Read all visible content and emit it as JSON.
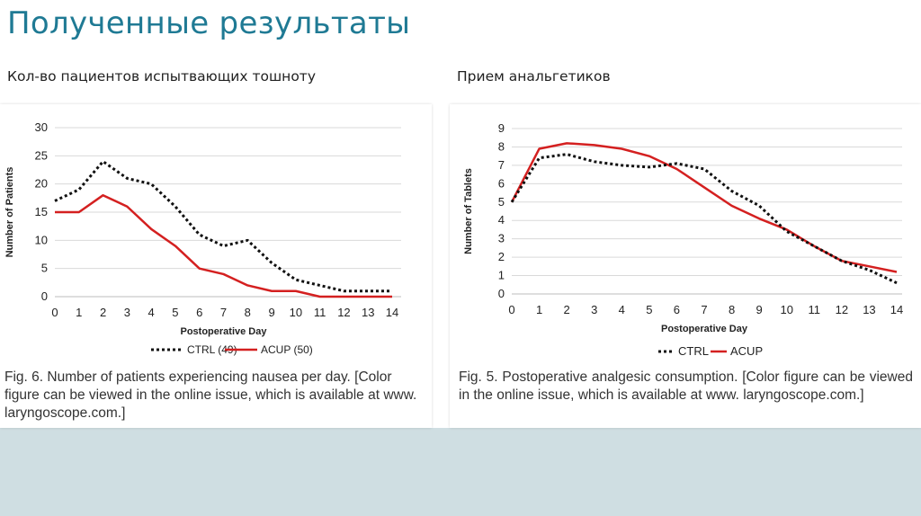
{
  "slide": {
    "title": "Полученные результаты",
    "left_subtitle": "Кол-во пациентов испытвающих тошноту",
    "right_subtitle": "Прием анальгетиков"
  },
  "colors": {
    "title": "#1f7a94",
    "ctrl": "#111111",
    "acup": "#d42020",
    "band": "#cfdee2"
  },
  "chart_data": [
    {
      "type": "line",
      "title": "",
      "xlabel": "Postoperative Day",
      "ylabel": "Number of Patients",
      "x": [
        0,
        1,
        2,
        3,
        4,
        5,
        6,
        7,
        8,
        9,
        10,
        11,
        12,
        13,
        14
      ],
      "ylim": [
        0,
        30
      ],
      "yticks": [
        0,
        5,
        10,
        15,
        20,
        25,
        30
      ],
      "grid": true,
      "legend_position": "bottom",
      "series": [
        {
          "name": "CTRL (49)",
          "style": "dotted",
          "values": [
            17,
            19,
            24,
            21,
            20,
            16,
            11,
            9,
            10,
            6,
            3,
            2,
            1,
            1,
            1
          ]
        },
        {
          "name": "ACUP (50)",
          "style": "solid",
          "values": [
            15,
            15,
            18,
            16,
            12,
            9,
            5,
            4,
            2,
            1,
            1,
            0,
            0,
            0,
            0
          ]
        }
      ],
      "caption": "Fig. 6. Number of patients experiencing nausea per day. [Color figure can be viewed in the online issue, which is available at www. laryngoscope.com.]"
    },
    {
      "type": "line",
      "title": "",
      "xlabel": "Postoperative Day",
      "ylabel": "Number of Tablets",
      "x": [
        0,
        1,
        2,
        3,
        4,
        5,
        6,
        7,
        8,
        9,
        10,
        11,
        12,
        13,
        14
      ],
      "ylim": [
        0,
        9
      ],
      "yticks": [
        0,
        1,
        2,
        3,
        4,
        5,
        6,
        7,
        8,
        9
      ],
      "grid": true,
      "legend_position": "bottom",
      "series": [
        {
          "name": "CTRL",
          "style": "dotted",
          "values": [
            5,
            7.4,
            7.6,
            7.2,
            7,
            6.9,
            7.1,
            6.8,
            5.6,
            4.8,
            3.4,
            2.6,
            1.8,
            1.3,
            0.6
          ]
        },
        {
          "name": "ACUP",
          "style": "solid",
          "values": [
            5,
            7.9,
            8.2,
            8.1,
            7.9,
            7.5,
            6.8,
            5.8,
            4.8,
            4.1,
            3.5,
            2.6,
            1.8,
            1.5,
            1.2
          ]
        }
      ],
      "caption": "Fig. 5. Postoperative analgesic consumption. [Color figure can be viewed in the online issue, which is available at www. laryngoscope.com.]"
    }
  ]
}
